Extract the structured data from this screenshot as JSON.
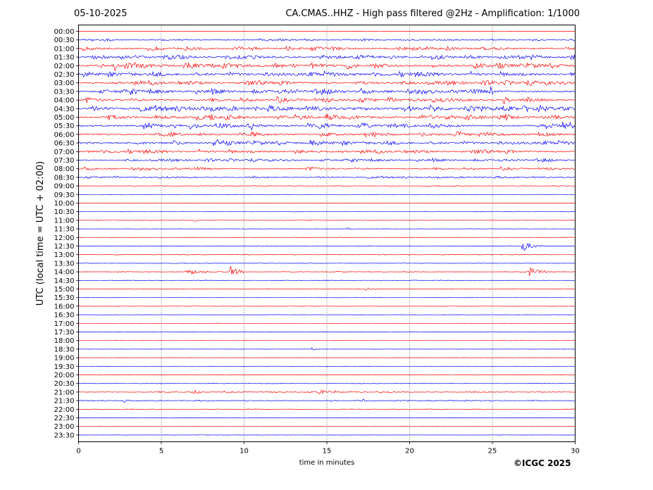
{
  "header": {
    "date": "05-10-2025",
    "title": "CA.CMAS..HHZ - High pass filtered @2Hz - Amplification: 1/1000"
  },
  "credit": "©ICGC 2025",
  "chart_data": {
    "type": "line",
    "xlabel": "time in minutes",
    "ylabel": "UTC (local time = UTC + 02:00)",
    "xlim": [
      0,
      30
    ],
    "x_ticks": [
      "0",
      "5",
      "10",
      "15",
      "20",
      "25",
      "30"
    ],
    "x_gridlines": [
      5,
      10,
      15,
      20,
      25
    ],
    "grid": "vertical dotted lines at 5-minute intervals",
    "colors": {
      "even_rows": "#ff0000",
      "odd_rows": "#0000ff"
    },
    "rows": [
      {
        "label": "00:00",
        "color": "red",
        "noise": 0.3
      },
      {
        "label": "00:30",
        "color": "blue",
        "noise": 1.2
      },
      {
        "label": "01:00",
        "color": "red",
        "noise": 2.0
      },
      {
        "label": "01:30",
        "color": "blue",
        "noise": 2.3
      },
      {
        "label": "02:00",
        "color": "red",
        "noise": 2.8
      },
      {
        "label": "02:30",
        "color": "blue",
        "noise": 2.8
      },
      {
        "label": "03:00",
        "color": "red",
        "noise": 2.6
      },
      {
        "label": "03:30",
        "color": "blue",
        "noise": 2.7
      },
      {
        "label": "04:00",
        "color": "red",
        "noise": 2.6
      },
      {
        "label": "04:30",
        "color": "blue",
        "noise": 3.2
      },
      {
        "label": "05:00",
        "color": "red",
        "noise": 2.8
      },
      {
        "label": "05:30",
        "color": "blue",
        "noise": 2.7
      },
      {
        "label": "06:00",
        "color": "red",
        "noise": 2.5
      },
      {
        "label": "06:30",
        "color": "blue",
        "noise": 2.4
      },
      {
        "label": "07:00",
        "color": "red",
        "noise": 2.2
      },
      {
        "label": "07:30",
        "color": "blue",
        "noise": 1.6
      },
      {
        "label": "08:00",
        "color": "red",
        "noise": 1.6
      },
      {
        "label": "08:30",
        "color": "blue",
        "noise": 1.2
      },
      {
        "label": "09:00",
        "color": "red",
        "noise": 0.4
      },
      {
        "label": "09:30",
        "color": "blue",
        "noise": 0.2
      },
      {
        "label": "10:00",
        "color": "red",
        "noise": 0.2
      },
      {
        "label": "10:30",
        "color": "blue",
        "noise": 0.2
      },
      {
        "label": "11:00",
        "color": "red",
        "noise": 0.3
      },
      {
        "label": "11:30",
        "color": "blue",
        "noise": 0.2
      },
      {
        "label": "12:00",
        "color": "red",
        "noise": 0.3
      },
      {
        "label": "12:30",
        "color": "blue",
        "noise": 0.4
      },
      {
        "label": "13:00",
        "color": "red",
        "noise": 0.4
      },
      {
        "label": "13:30",
        "color": "blue",
        "noise": 0.3
      },
      {
        "label": "14:00",
        "color": "red",
        "noise": 0.5
      },
      {
        "label": "14:30",
        "color": "blue",
        "noise": 0.4
      },
      {
        "label": "15:00",
        "color": "red",
        "noise": 0.4
      },
      {
        "label": "15:30",
        "color": "blue",
        "noise": 0.2
      },
      {
        "label": "16:00",
        "color": "red",
        "noise": 0.2
      },
      {
        "label": "16:30",
        "color": "blue",
        "noise": 0.2
      },
      {
        "label": "17:00",
        "color": "red",
        "noise": 0.2
      },
      {
        "label": "17:30",
        "color": "blue",
        "noise": 0.2
      },
      {
        "label": "18:00",
        "color": "red",
        "noise": 0.2
      },
      {
        "label": "18:30",
        "color": "blue",
        "noise": 0.2
      },
      {
        "label": "19:00",
        "color": "red",
        "noise": 0.2
      },
      {
        "label": "19:30",
        "color": "blue",
        "noise": 0.2
      },
      {
        "label": "20:00",
        "color": "red",
        "noise": 0.2
      },
      {
        "label": "20:30",
        "color": "blue",
        "noise": 0.3
      },
      {
        "label": "21:00",
        "color": "red",
        "noise": 0.8
      },
      {
        "label": "21:30",
        "color": "blue",
        "noise": 0.6
      },
      {
        "label": "22:00",
        "color": "red",
        "noise": 0.4
      },
      {
        "label": "22:30",
        "color": "blue",
        "noise": 0.2
      },
      {
        "label": "23:00",
        "color": "red",
        "noise": 0.2
      },
      {
        "label": "23:30",
        "color": "blue",
        "noise": 0.2
      }
    ],
    "events": [
      {
        "row": "02:00",
        "minute": 2.2,
        "amplitude": 7,
        "duration": 0.4
      },
      {
        "row": "02:00",
        "minute": 16.1,
        "amplitude": 6,
        "duration": 0.8
      },
      {
        "row": "01:30",
        "minute": 21.4,
        "amplitude": 5,
        "duration": 0.3
      },
      {
        "row": "03:30",
        "minute": 24.9,
        "amplitude": 6,
        "duration": 0.3
      },
      {
        "row": "04:00",
        "minute": 25.7,
        "amplitude": 8,
        "duration": 0.4
      },
      {
        "row": "05:30",
        "minute": 6.8,
        "amplitude": 5,
        "duration": 1.2
      },
      {
        "row": "05:30",
        "minute": 10.4,
        "amplitude": 6,
        "duration": 0.4
      },
      {
        "row": "05:30",
        "minute": 29.2,
        "amplitude": 5,
        "duration": 0.8
      },
      {
        "row": "06:00",
        "minute": 22.9,
        "amplitude": 5,
        "duration": 0.3
      },
      {
        "row": "06:30",
        "minute": 8.1,
        "amplitude": 8,
        "duration": 1.0
      },
      {
        "row": "07:00",
        "minute": 13.0,
        "amplitude": 5,
        "duration": 0.6
      },
      {
        "row": "11:00",
        "minute": 6.9,
        "amplitude": 3,
        "duration": 0.4
      },
      {
        "row": "11:30",
        "minute": 16.2,
        "amplitude": 3,
        "duration": 0.5
      },
      {
        "row": "12:30",
        "minute": 26.8,
        "amplitude": 9,
        "duration": 1.2
      },
      {
        "row": "14:00",
        "minute": 9.2,
        "amplitude": 9,
        "duration": 1.0
      },
      {
        "row": "14:00",
        "minute": 27.2,
        "amplitude": 7,
        "duration": 1.3
      },
      {
        "row": "14:00",
        "minute": 6.5,
        "amplitude": 4,
        "duration": 2.5
      },
      {
        "row": "15:00",
        "minute": 17.3,
        "amplitude": 3,
        "duration": 0.8
      },
      {
        "row": "18:30",
        "minute": 14.1,
        "amplitude": 2,
        "duration": 0.6
      },
      {
        "row": "21:00",
        "minute": 14.5,
        "amplitude": 3,
        "duration": 1.8
      },
      {
        "row": "21:00",
        "minute": 7.0,
        "amplitude": 3,
        "duration": 1.0
      },
      {
        "row": "21:30",
        "minute": 17.2,
        "amplitude": 3,
        "duration": 0.2
      },
      {
        "row": "21:30",
        "minute": 2.8,
        "amplitude": 3,
        "duration": 0.3
      }
    ]
  }
}
